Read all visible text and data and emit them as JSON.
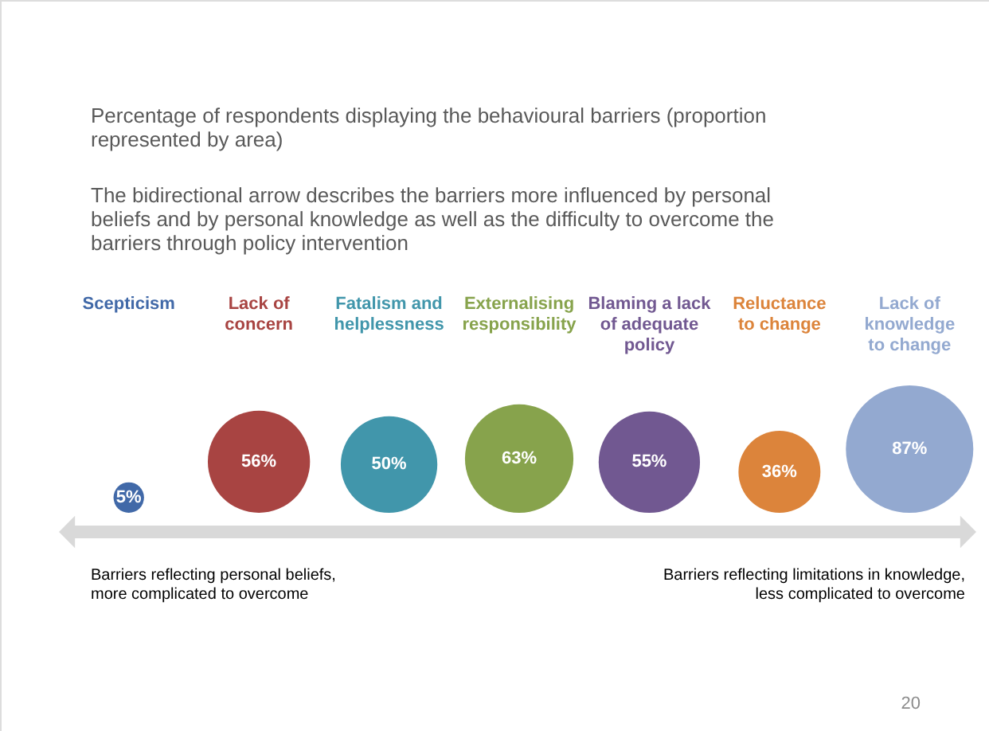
{
  "chart_data": {
    "type": "other",
    "title": "Percentage of respondents displaying the behavioural barriers (proportion\nrepresented by area)",
    "subtitle": "The bidirectional arrow describes the barriers more influenced by personal\nbeliefs and by personal knowledge as well as the difficulty to overcome the\nbarriers through policy intervention",
    "categories": [
      "Scepticism",
      "Lack of\nconcern",
      "Fatalism and\nhelplessness",
      "Externalising\nresponsibility",
      "Blaming a lack\nof adequate\npolicy",
      "Reluctance\nto change",
      "Lack of\nknowledge\nto change"
    ],
    "values": [
      5,
      56,
      50,
      63,
      55,
      36,
      87
    ],
    "value_labels": [
      "5%",
      "56%",
      "50%",
      "63%",
      "55%",
      "36%",
      "87%"
    ],
    "colors": [
      "#4169a8",
      "#a84442",
      "#4196ab",
      "#87a34c",
      "#715891",
      "#dc843b",
      "#93a9d0"
    ],
    "annotations": [
      "Barriers  reflecting personal beliefs,\nmore complicated to overcome",
      "Barriers  reflecting limitations in knowledge,\nless complicated to overcome",
      "20"
    ]
  }
}
